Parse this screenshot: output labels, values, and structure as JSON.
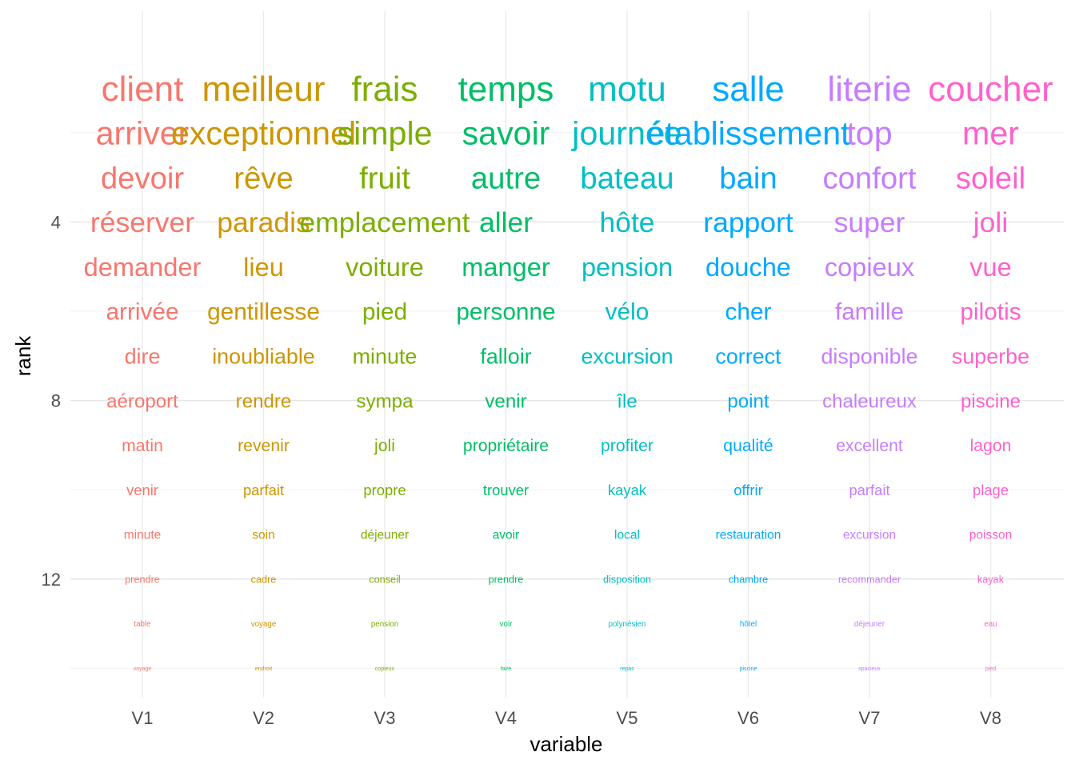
{
  "chart_data": {
    "type": "table",
    "xlabel": "variable",
    "ylabel": "rank",
    "categories": [
      "V1",
      "V2",
      "V3",
      "V4",
      "V5",
      "V6",
      "V7",
      "V8"
    ],
    "y_ticks": [
      4,
      8,
      12
    ],
    "ylim": [
      15.5,
      0.5
    ],
    "y_reversed": true,
    "grid": true,
    "ranks": [
      1,
      2,
      3,
      4,
      5,
      6,
      7,
      8,
      9,
      10,
      11,
      12,
      13,
      14,
      15
    ],
    "columns": [
      {
        "name": "V1",
        "color": "#F8766D",
        "words": [
          "client",
          "arriver",
          "devoir",
          "réserver",
          "demander",
          "arrivée",
          "dire",
          "aéroport",
          "matin",
          "venir",
          "minute",
          "prendre",
          "table",
          "voyage"
        ]
      },
      {
        "name": "V2",
        "color": "#CD9600",
        "words": [
          "meilleur",
          "exceptionnel",
          "rêve",
          "paradis",
          "lieu",
          "gentillesse",
          "inoubliable",
          "rendre",
          "revenir",
          "parfait",
          "soin",
          "cadre",
          "voyage",
          "endroit"
        ]
      },
      {
        "name": "V3",
        "color": "#7CAE00",
        "words": [
          "frais",
          "simple",
          "fruit",
          "emplacement",
          "voiture",
          "pied",
          "minute",
          "sympa",
          "joli",
          "propre",
          "déjeuner",
          "conseil",
          "pension",
          "copieux"
        ]
      },
      {
        "name": "V4",
        "color": "#00BE67",
        "words": [
          "temps",
          "savoir",
          "autre",
          "aller",
          "manger",
          "personne",
          "falloir",
          "venir",
          "propriétaire",
          "trouver",
          "avoir",
          "prendre",
          "voir",
          "faire"
        ]
      },
      {
        "name": "V5",
        "color": "#00BFC4",
        "words": [
          "motu",
          "journée",
          "bateau",
          "hôte",
          "pension",
          "vélo",
          "excursion",
          "île",
          "profiter",
          "kayak",
          "local",
          "disposition",
          "polynésien",
          "repas"
        ]
      },
      {
        "name": "V6",
        "color": "#00A9FF",
        "words": [
          "salle",
          "établissement",
          "bain",
          "rapport",
          "douche",
          "cher",
          "correct",
          "point",
          "qualité",
          "offrir",
          "restauration",
          "chambre",
          "hôtel",
          "piscine"
        ]
      },
      {
        "name": "V7",
        "color": "#C77CFF",
        "words": [
          "literie",
          "top",
          "confort",
          "super",
          "copieux",
          "famille",
          "disponible",
          "chaleureux",
          "excellent",
          "parfait",
          "excursion",
          "recommander",
          "déjeuner",
          "spacieux"
        ]
      },
      {
        "name": "V8",
        "color": "#FF61CC",
        "words": [
          "coucher",
          "mer",
          "soleil",
          "joli",
          "vue",
          "pilotis",
          "superbe",
          "piscine",
          "lagon",
          "plage",
          "poisson",
          "kayak",
          "eau",
          "pied"
        ]
      }
    ]
  }
}
